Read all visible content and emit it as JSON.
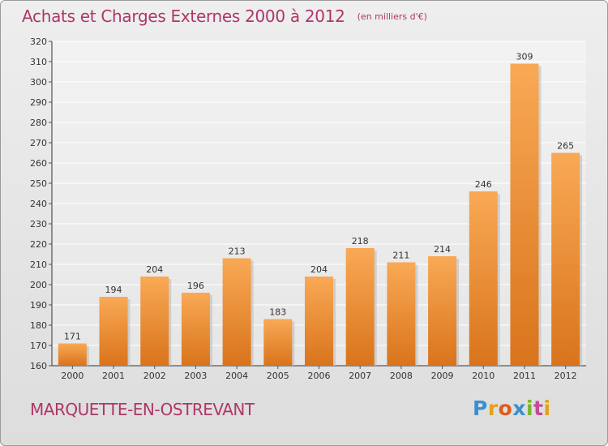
{
  "header": {
    "title": "Achats et Charges Externes 2000 à 2012",
    "unit": "(en milliers d'€)"
  },
  "footer": {
    "commune": "MARQUETTE-EN-OSTREVANT",
    "logo_letters": [
      "P",
      "r",
      "o",
      "x",
      "i",
      "t",
      "i"
    ],
    "logo_colors": [
      "#3a8fd0",
      "#e2a21a",
      "#e05a1a",
      "#3a8fd0",
      "#7ab52e",
      "#c54a9a",
      "#e2a21a"
    ]
  },
  "colors": {
    "bar_light": "#f9a955",
    "bar_dark": "#d9741c",
    "text_accent": "#b03569"
  },
  "chart_data": {
    "type": "bar",
    "title": "Achats et Charges Externes 2000 à 2012",
    "subtitle": "(en milliers d'€)",
    "categories": [
      "2000",
      "2001",
      "2002",
      "2003",
      "2004",
      "2005",
      "2006",
      "2007",
      "2008",
      "2009",
      "2010",
      "2011",
      "2012"
    ],
    "values": [
      171,
      194,
      204,
      196,
      213,
      183,
      204,
      218,
      211,
      214,
      246,
      309,
      265
    ],
    "ylim": [
      160,
      320
    ],
    "yticks": [
      160,
      170,
      180,
      190,
      200,
      210,
      220,
      230,
      240,
      250,
      260,
      270,
      280,
      290,
      300,
      310,
      320
    ],
    "grid": true,
    "legend": "none"
  }
}
